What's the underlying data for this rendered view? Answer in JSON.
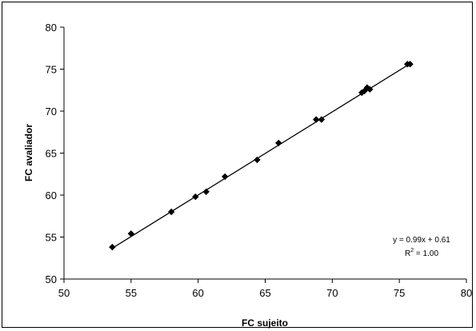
{
  "chart_data": {
    "type": "scatter",
    "title": "",
    "xlabel": "FC sujeito",
    "ylabel": "FC avaliador",
    "xlim": [
      50,
      80
    ],
    "ylim": [
      50,
      80
    ],
    "xticks": [
      50,
      55,
      60,
      65,
      70,
      75,
      80
    ],
    "yticks": [
      50,
      55,
      60,
      65,
      70,
      75,
      80
    ],
    "grid": false,
    "legend": "none",
    "marker": "diamond",
    "marker_color": "#000000",
    "points": [
      {
        "x": 53.6,
        "y": 53.8
      },
      {
        "x": 55.0,
        "y": 55.4
      },
      {
        "x": 58.0,
        "y": 58.0
      },
      {
        "x": 59.8,
        "y": 59.8
      },
      {
        "x": 60.6,
        "y": 60.4
      },
      {
        "x": 62.0,
        "y": 62.2
      },
      {
        "x": 64.4,
        "y": 64.2
      },
      {
        "x": 66.0,
        "y": 66.2
      },
      {
        "x": 68.8,
        "y": 69.0
      },
      {
        "x": 69.2,
        "y": 69.0
      },
      {
        "x": 72.2,
        "y": 72.2
      },
      {
        "x": 72.4,
        "y": 72.4
      },
      {
        "x": 72.6,
        "y": 72.8
      },
      {
        "x": 72.8,
        "y": 72.6
      },
      {
        "x": 75.6,
        "y": 75.6
      },
      {
        "x": 75.8,
        "y": 75.6
      }
    ],
    "trendline": {
      "type": "linear",
      "slope": 0.99,
      "intercept": 0.61,
      "x_range": [
        53.6,
        75.8
      ],
      "equation_label": "y = 0.99x + 0.61",
      "r2_label_prefix": "R",
      "r2_label_sup": "2",
      "r2_label_suffix": " = 1.00"
    }
  }
}
